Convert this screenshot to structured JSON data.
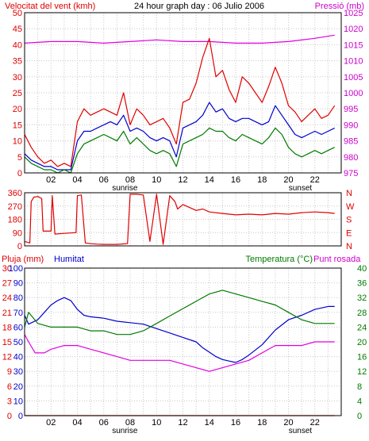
{
  "header": {
    "left": "Velocitat del vent (kmh)",
    "center": "24 hour graph day : 06 Julio 2006",
    "right": "Pressió (mb)"
  },
  "colors": {
    "red": "#e00000",
    "blue": "#0000cc",
    "green": "#007a00",
    "magenta": "#e000e0",
    "grid": "#c8c8c8",
    "axis_red": "#e00000",
    "axis_magenta": "#cc00cc"
  },
  "chart_data": [
    {
      "type": "line",
      "id": "wind",
      "title": "Velocitat del vent (kmh)",
      "right_title": "Pressió (mb)",
      "x_ticks": [
        "02",
        "04",
        "06",
        "08",
        "10",
        "12",
        "14",
        "16",
        "18",
        "20",
        "22"
      ],
      "sun_labels": [
        {
          "text": "sunrise",
          "x": 7.6
        },
        {
          "text": "sunset",
          "x": 20.9
        }
      ],
      "xlim": [
        0,
        24
      ],
      "ylim_left": [
        0,
        50
      ],
      "ylim_right": [
        975,
        1025
      ],
      "left_ticks": [
        0,
        5,
        10,
        15,
        20,
        25,
        30,
        35,
        40,
        45,
        50
      ],
      "right_ticks": [
        975,
        980,
        985,
        990,
        995,
        1000,
        1005,
        1010,
        1015,
        1020,
        1025
      ],
      "series": [
        {
          "axis": "right",
          "color_key": "magenta",
          "x": [
            0,
            2,
            4,
            6,
            8,
            10,
            12,
            14,
            16,
            18,
            20,
            22,
            23.5
          ],
          "y": [
            1015.5,
            1016,
            1016,
            1015.5,
            1016,
            1016.5,
            1016,
            1016,
            1015.5,
            1015.5,
            1016,
            1017,
            1018
          ]
        },
        {
          "axis": "left",
          "color_key": "red",
          "x": [
            0,
            0.5,
            1,
            1.5,
            2,
            2.5,
            3,
            3.5,
            4,
            4.5,
            5,
            5.5,
            6,
            6.5,
            7,
            7.5,
            8,
            8.5,
            9,
            9.5,
            10,
            10.5,
            11,
            11.5,
            12,
            12.5,
            13,
            13.5,
            14,
            14.5,
            15,
            15.5,
            16,
            16.5,
            17,
            17.5,
            18,
            18.5,
            19,
            19.5,
            20,
            20.5,
            21,
            21.5,
            22,
            22.5,
            23,
            23.5
          ],
          "y": [
            12,
            8,
            5,
            3,
            4,
            2,
            3,
            2,
            16,
            20,
            18,
            19,
            20,
            19,
            18,
            25,
            15,
            20,
            18,
            15,
            16,
            17,
            14,
            9,
            22,
            23,
            28,
            36,
            42,
            30,
            32,
            26,
            22,
            30,
            28,
            25,
            22,
            27,
            33,
            28,
            21,
            19,
            16,
            18,
            20,
            17,
            18,
            21
          ]
        },
        {
          "axis": "left",
          "color_key": "blue",
          "x": [
            0,
            0.5,
            1,
            1.5,
            2,
            2.5,
            3,
            3.5,
            4,
            4.5,
            5,
            5.5,
            6,
            6.5,
            7,
            7.5,
            8,
            8.5,
            9,
            9.5,
            10,
            10.5,
            11,
            11.5,
            12,
            12.5,
            13,
            13.5,
            14,
            14.5,
            15,
            15.5,
            16,
            16.5,
            17,
            17.5,
            18,
            18.5,
            19,
            19.5,
            20,
            20.5,
            21,
            21.5,
            22,
            22.5,
            23,
            23.5
          ],
          "y": [
            6,
            4,
            3,
            2,
            2,
            1,
            1,
            1,
            10,
            13,
            13,
            14,
            15,
            16,
            15,
            18,
            13,
            14,
            13,
            11,
            10,
            11,
            10,
            5,
            14,
            15,
            16,
            18,
            22,
            19,
            20,
            17,
            16,
            17,
            17,
            16,
            15,
            16,
            21,
            18,
            15,
            12,
            11,
            12,
            13,
            12,
            13,
            14
          ]
        },
        {
          "axis": "left",
          "color_key": "green",
          "x": [
            0,
            0.5,
            1,
            1.5,
            2,
            2.5,
            3,
            3.5,
            4,
            4.5,
            5,
            5.5,
            6,
            6.5,
            7,
            7.5,
            8,
            8.5,
            9,
            9.5,
            10,
            10.5,
            11,
            11.5,
            12,
            12.5,
            13,
            13.5,
            14,
            14.5,
            15,
            15.5,
            16,
            16.5,
            17,
            17.5,
            18,
            18.5,
            19,
            19.5,
            20,
            20.5,
            21,
            21.5,
            22,
            22.5,
            23,
            23.5
          ],
          "y": [
            5,
            3,
            2,
            1,
            1,
            0,
            1,
            0,
            6,
            9,
            10,
            11,
            12,
            11,
            10,
            13,
            9,
            11,
            9,
            7,
            6,
            7,
            6,
            2,
            9,
            10,
            11,
            12,
            14,
            13,
            13,
            11,
            10,
            12,
            11,
            10,
            9,
            11,
            14,
            12,
            8,
            6,
            5,
            6,
            7,
            6,
            7,
            8
          ]
        }
      ]
    },
    {
      "type": "line",
      "id": "direction",
      "xlim": [
        0,
        24
      ],
      "ylim": [
        0,
        360
      ],
      "left_ticks": [
        0,
        90,
        180,
        270,
        360
      ],
      "right_labels": [
        "N",
        "W",
        "S",
        "E",
        "N"
      ],
      "series": [
        {
          "color_key": "red",
          "x": [
            0,
            0.4,
            0.5,
            0.7,
            1.0,
            1.3,
            1.4,
            2.0,
            2.1,
            2.3,
            3.0,
            3.9,
            4.0,
            4.3,
            4.6,
            5.0,
            5.5,
            6.0,
            7.0,
            7.8,
            8.0,
            8.5,
            9.0,
            9.5,
            10.0,
            10.5,
            11.0,
            11.4,
            11.6,
            12.0,
            12.5,
            13.0,
            13.5,
            14.0,
            15.0,
            16.0,
            17.0,
            18.0,
            19.0,
            20.0,
            21.0,
            22.0,
            23.0,
            23.5
          ],
          "y": [
            30,
            20,
            300,
            330,
            335,
            320,
            100,
            100,
            340,
            80,
            85,
            90,
            340,
            345,
            20,
            15,
            12,
            10,
            10,
            15,
            350,
            350,
            345,
            30,
            350,
            10,
            340,
            300,
            250,
            280,
            260,
            240,
            250,
            230,
            220,
            210,
            215,
            210,
            220,
            215,
            225,
            230,
            225,
            220
          ]
        }
      ]
    },
    {
      "type": "line",
      "id": "humidity-temperature",
      "label_rain": "Pluja (mm)",
      "label_humidity": "Humitat",
      "label_temperature": "Temperatura (°C)",
      "label_dewpoint": "Punt rosada",
      "x_ticks": [
        "02",
        "04",
        "06",
        "08",
        "10",
        "12",
        "14",
        "16",
        "18",
        "20",
        "22"
      ],
      "sun_labels": [
        {
          "text": "sunrise",
          "x": 7.6
        },
        {
          "text": "sunset",
          "x": 20.9
        }
      ],
      "xlim": [
        0,
        24
      ],
      "ylim_humidity": [
        0,
        100
      ],
      "ylim_temperature": [
        0,
        40
      ],
      "rain_ticks": [
        0,
        3,
        6,
        9,
        12,
        15,
        18,
        21,
        24,
        27,
        30
      ],
      "humidity_ticks": [
        0,
        10,
        20,
        30,
        40,
        50,
        60,
        70,
        80,
        90,
        100
      ],
      "temperature_ticks": [
        0,
        4,
        8,
        12,
        16,
        20,
        24,
        28,
        32,
        36,
        40
      ],
      "series": [
        {
          "name": "Humitat",
          "axis": "humidity",
          "color_key": "blue",
          "x": [
            0,
            0.3,
            1,
            1.5,
            2,
            2.5,
            3,
            3.5,
            4,
            4.5,
            5,
            6,
            7,
            8,
            9,
            10,
            11,
            12,
            13,
            13.5,
            14,
            14.5,
            15,
            15.5,
            16,
            16.5,
            17,
            18,
            19,
            20,
            21,
            22,
            23,
            23.5
          ],
          "y": [
            68,
            62,
            65,
            70,
            75,
            78,
            80,
            78,
            72,
            68,
            67,
            66,
            64,
            63,
            62,
            59,
            56,
            53,
            50,
            46,
            43,
            40,
            38,
            37,
            36,
            38,
            41,
            48,
            58,
            65,
            68,
            72,
            74,
            74
          ]
        },
        {
          "name": "Temperatura (°C)",
          "axis": "temperature",
          "color_key": "green",
          "x": [
            0,
            0.3,
            1,
            2,
            3,
            4,
            5,
            6,
            7,
            8,
            9,
            10,
            11,
            12,
            13,
            14,
            15,
            16,
            17,
            18,
            19,
            20,
            21,
            22,
            23,
            23.5
          ],
          "y": [
            24,
            28,
            25,
            24,
            24,
            24,
            23,
            23,
            22,
            22,
            23,
            25,
            27,
            29,
            31,
            33,
            34,
            33,
            32,
            31,
            30,
            28,
            26,
            25,
            25,
            25
          ]
        },
        {
          "name": "Punt rosada",
          "axis": "temperature",
          "color_key": "magenta",
          "x": [
            0,
            0.3,
            0.8,
            1.5,
            2,
            3,
            4,
            5,
            6,
            7,
            8,
            9,
            10,
            11,
            12,
            13,
            14,
            15,
            16,
            17,
            18,
            19,
            20,
            21,
            22,
            23,
            23.5
          ],
          "y": [
            22,
            20,
            17,
            17,
            18,
            19,
            19,
            18,
            17,
            16,
            15,
            15,
            15,
            15,
            14,
            13,
            12,
            13,
            14,
            15,
            17,
            19,
            19,
            19,
            20,
            20,
            20
          ]
        },
        {
          "name": "Pluja (mm)",
          "axis": "humidity",
          "color_key": "red",
          "x": [
            0,
            23.5
          ],
          "y": [
            0,
            0
          ]
        }
      ]
    }
  ]
}
